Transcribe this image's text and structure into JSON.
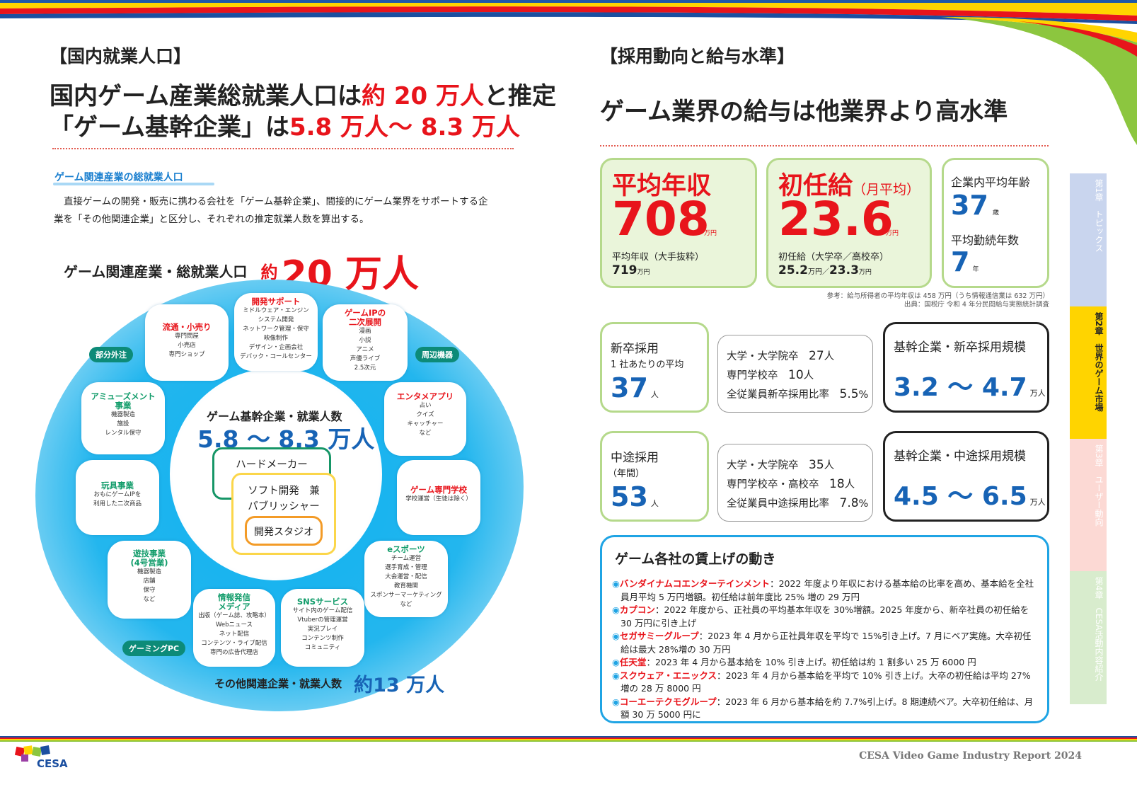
{
  "left": {
    "section_title": "【国内就業人口】",
    "headline1": [
      "国内ゲーム産業総就業人口は",
      "約 20 万人",
      "と推定"
    ],
    "headline2": [
      "「ゲーム基幹企業」は",
      "5.8 万人～ 8.3 万人"
    ],
    "sub_heading": "ゲーム関連産業の総就業人口",
    "body_line1": "直接ゲームの開発・販売に携わる会社を「ゲーム基幹企業」、間接的にゲーム業界をサポートする企",
    "body_line2": "業を「その他関連企業」と区分し、それぞれの推定就業人数を算出する。",
    "total_label": "ゲーム関連産業・総就業人口",
    "total_prefix": "約",
    "total_value": "20 万人",
    "core_label": "ゲーム基幹企業・就業人数",
    "core_value": "5.8 ～ 8.3 万人",
    "hard_maker": "ハードメーカー",
    "soft_pub1": "ソフト開発　兼",
    "soft_pub2": "パブリッシャー",
    "studio": "開発スタジオ",
    "other_label": "その他関連企業・就業人数",
    "other_value": "約13 万人",
    "pills": [
      "部分外注",
      "周辺機器",
      "ゲーミングPC"
    ],
    "categories": [
      {
        "title": "開発サポート",
        "lines": [
          "ミドルウェア・エンジン",
          "システム開発",
          "ネットワーク管理・保守",
          "映像制作",
          "デザイン・企画会社",
          "デバック・コールセンター"
        ]
      },
      {
        "title": "ゲームIPの\n二次展開",
        "lines": [
          "漫画",
          "小説",
          "アニメ",
          "声優ライブ",
          "2.5次元"
        ]
      },
      {
        "title": "流通・小売り",
        "lines": [
          "専門問屋",
          "小売店",
          "専門ショップ"
        ]
      },
      {
        "title": "アミューズメント\n事業",
        "lines": [
          "機器製造",
          "施設",
          "レンタル保守"
        ]
      },
      {
        "title": "エンタメアプリ",
        "lines": [
          "占い",
          "クイズ",
          "キャッチャー",
          "など"
        ]
      },
      {
        "title": "玩具事業",
        "lines": [
          "おもにゲームIPを",
          "利用した二次商品"
        ]
      },
      {
        "title": "ゲーム専門学校",
        "lines": [
          "学校運営（生徒は除く）"
        ]
      },
      {
        "title": "遊技事業\n(4号営業)",
        "lines": [
          "機器製造",
          "店舗",
          "保守",
          "など"
        ]
      },
      {
        "title": "eスポーツ",
        "lines": [
          "チーム運営",
          "選手育成・管理",
          "大会運営・配信",
          "教育機関",
          "スポンサーマーケティング",
          "など"
        ]
      },
      {
        "title": "情報発信\nメディア",
        "lines": [
          "出版（ゲーム誌、攻略本）",
          "Webニュース",
          "ネット配信",
          "コンテンツ・ライブ配信",
          "専門の広告代理店"
        ]
      },
      {
        "title": "SNSサービス",
        "lines": [
          "サイト内のゲーム配信",
          "Vtuberの管理運営",
          "実況プレイ",
          "コンテンツ制作",
          "コミュニティ"
        ]
      }
    ]
  },
  "right": {
    "section_title": "【採用動向と給与水準】",
    "headline": "ゲーム業界の給与は他業界より高水準",
    "avg_income": {
      "title": "平均年収",
      "value": "708",
      "unit": "万円",
      "sub_label": "平均年収（大手抜粋）",
      "sub_value": "719",
      "sub_unit": "万円"
    },
    "starting": {
      "title": "初任給",
      "title_note": "（月平均）",
      "value": "23.6",
      "unit": "万円",
      "sub_label": "初任給（大学卒／高校卒）",
      "sub_value1": "25.2",
      "sub_unit1": "万円／",
      "sub_value2": "23.3",
      "sub_unit2": "万円"
    },
    "age": {
      "label": "企業内平均年齢",
      "value": "37",
      "unit": "歳",
      "tenure_label": "平均勤続年数",
      "tenure_value": "7",
      "tenure_unit": "年"
    },
    "note1": "参考：給与所得者の平均年収は 458 万円（うち情報通信業は 632 万円）",
    "note2": "出典：国税庁 令和 4 年分民間給与実態統計調査",
    "newgrad": {
      "label": "新卒採用",
      "sub": "1 社あたりの平均",
      "value": "37",
      "unit": "人",
      "rows": [
        [
          "大学・大学院卒",
          "27",
          "人"
        ],
        [
          "専門学校卒",
          "10",
          "人"
        ],
        [
          "全従業員新卒採用比率",
          "5.5",
          "%"
        ]
      ],
      "scale_label": "基幹企業・新卒採用規模",
      "scale_value": "3.2 ～ 4.7",
      "scale_unit": "万人"
    },
    "midcareer": {
      "label": "中途採用",
      "sub": "（年間）",
      "value": "53",
      "unit": "人",
      "rows": [
        [
          "大学・大学院卒",
          "35",
          "人"
        ],
        [
          "専門学校卒・高校卒",
          "18",
          "人"
        ],
        [
          "全従業員中途採用比率",
          "7.8",
          "%"
        ]
      ],
      "scale_label": "基幹企業・中途採用規模",
      "scale_value": "4.5 ～ 6.5",
      "scale_unit": "万人"
    },
    "raises_title": "ゲーム各社の賃上げの動き",
    "raises": [
      {
        "company": "バンダイナムコエンターテインメント",
        "text": "：2022 年度より年収における基本給の比率を高め、基本給を全社員月平均 5 万円増額。初任給は前年度比 25% 増の 29 万円"
      },
      {
        "company": "カプコン",
        "text": "：2022 年度から、正社員の平均基本年収を 30%増額。2025 年度から、新卒社員の初任給を 30 万円に引き上げ"
      },
      {
        "company": "セガサミーグループ",
        "text": "：2023 年 4 月から正社員年収を平均で 15%引き上げ。7 月にベア実施。大卒初任給は最大 28%増の 30 万円"
      },
      {
        "company": "任天堂",
        "text": "：2023 年 4 月から基本給を 10% 引き上げ。初任給は約 1 割多い 25 万 6000 円"
      },
      {
        "company": "スクウェア・エニックス",
        "text": "：2023 年 4 月から基本給を平均で 10% 引き上げ。大卒の初任給は平均 27% 増の 28 万 8000 円"
      },
      {
        "company": "コーエーテクモグループ",
        "text": "：2023 年 6 月から基本給を約 7.7%引上げ。8 期連続ベア。大卒初任給は、月額 30 万 5000 円に"
      }
    ]
  },
  "tabs": [
    "第1章　トピックス",
    "第2章　世界のゲーム市場",
    "第3章　ユーザー動向",
    "第4章　CESA活動内容紹介"
  ],
  "footer": {
    "logo_text": "CESA",
    "report_title": "CESA Video Game Industry Report 2024"
  },
  "colors": {
    "accent_red": "#e8141b",
    "accent_blue": "#1763b5",
    "green": "#8cc63f",
    "yellow": "#ffd400"
  }
}
